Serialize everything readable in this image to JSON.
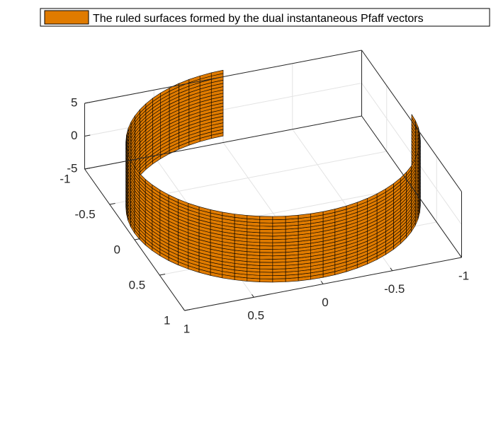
{
  "chart_data": {
    "type": "surface3d",
    "title": "",
    "xlabel": "",
    "ylabel": "",
    "zlabel": "",
    "legend": {
      "label": "The ruled surfaces formed by the dual instantaneous Pfaff vectors",
      "location": "top-right"
    },
    "grid": true,
    "surface": {
      "shape": "partial cylinder (unit radius), z-ruled",
      "radius": 1,
      "theta_start_deg": -90,
      "theta_end_deg": 180,
      "angular_divisions": 54,
      "z_range": [
        -4,
        6
      ],
      "z_divisions": 20,
      "face_color": "#e07b00",
      "edge_color": "#000000"
    },
    "axes": {
      "x": {
        "lim": [
          -1,
          1
        ],
        "ticks": [
          -1,
          -0.5,
          0,
          0.5,
          1
        ],
        "tick_labels": [
          "-1",
          "-0.5",
          "0",
          "0.5",
          "1"
        ]
      },
      "y": {
        "lim": [
          -1,
          1
        ],
        "ticks": [
          -1,
          -0.5,
          0,
          0.5,
          1
        ],
        "tick_labels": [
          "-1",
          "-0.5",
          "0",
          "0.5",
          "1"
        ]
      },
      "z": {
        "lim": [
          -5,
          5
        ],
        "ticks": [
          -5,
          0,
          5
        ],
        "tick_labels": [
          "-5",
          "0",
          "5"
        ]
      }
    }
  }
}
